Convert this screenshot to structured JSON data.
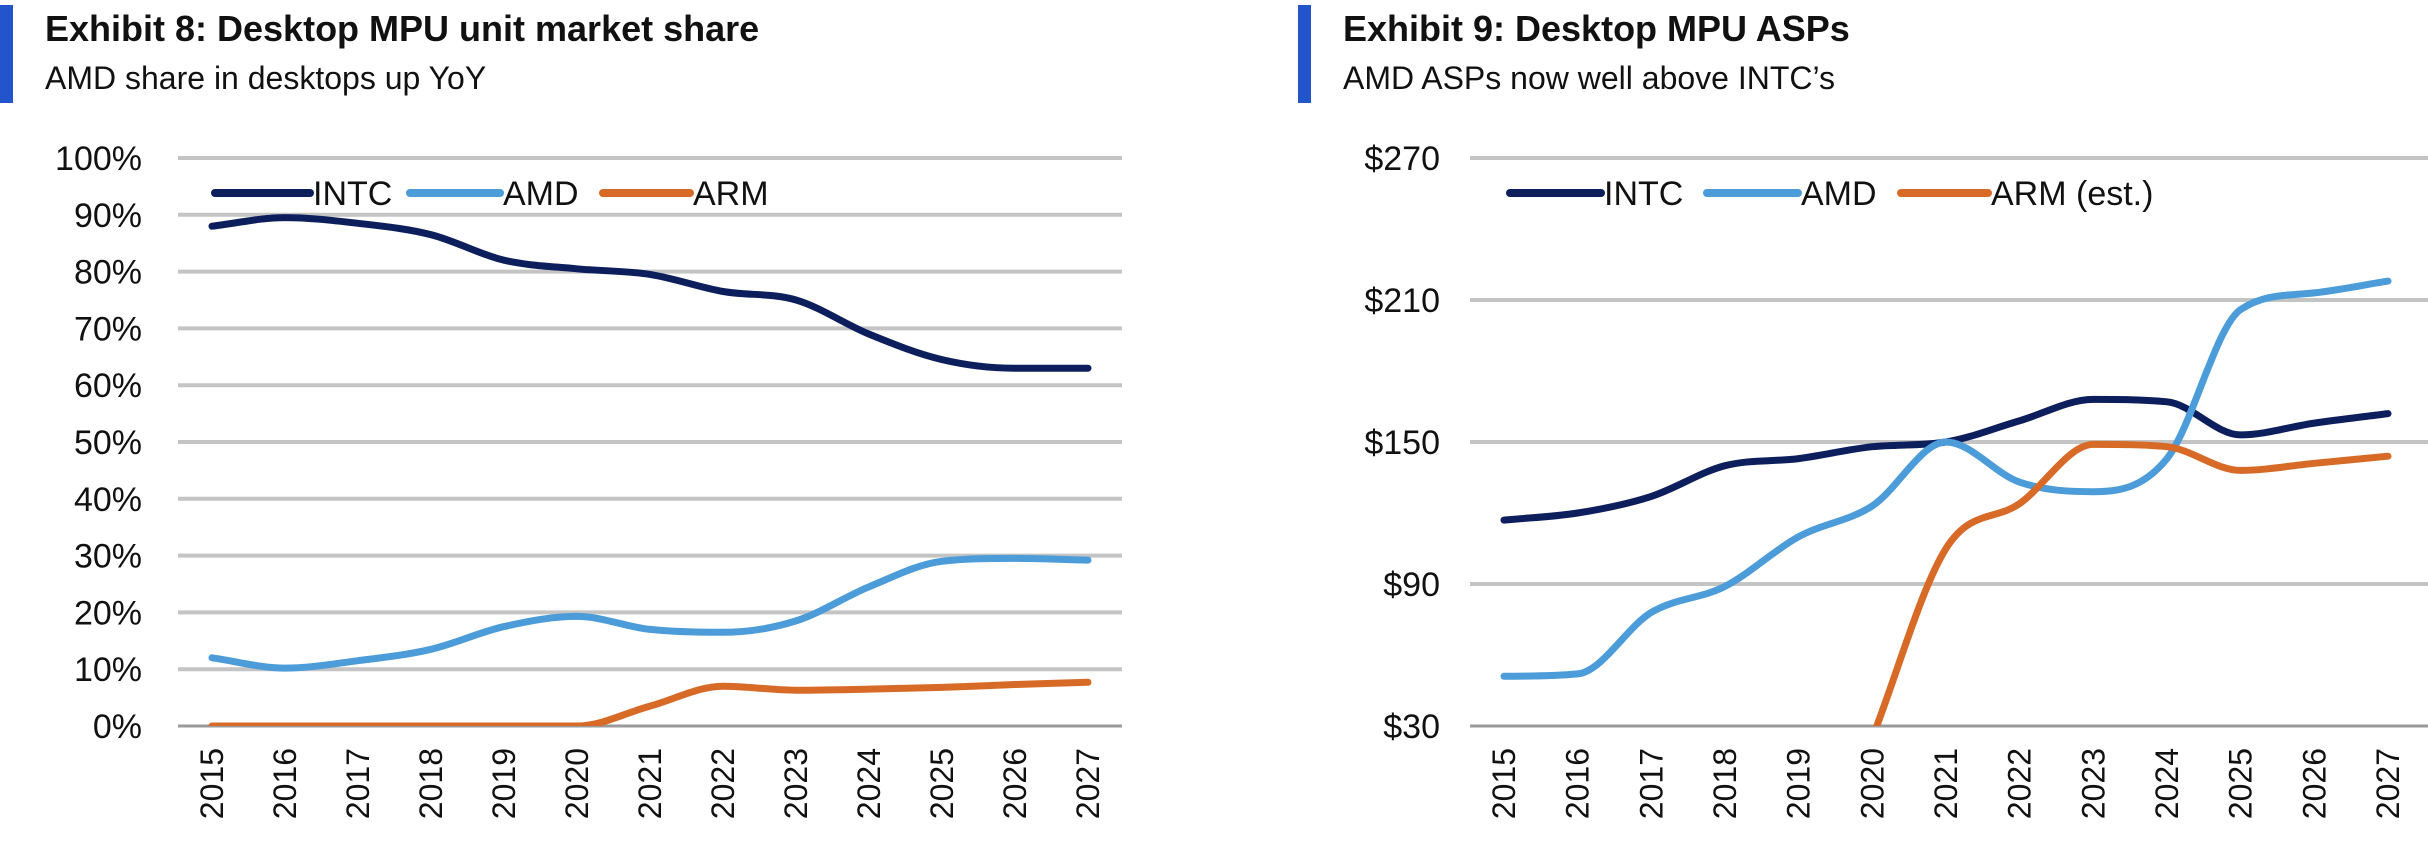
{
  "exhibits": [
    {
      "title": "Exhibit 8: Desktop MPU unit market share",
      "subtitle": "AMD share in desktops up YoY"
    },
    {
      "title": "Exhibit 9: Desktop MPU ASPs",
      "subtitle": "AMD ASPs now well above INTC’s"
    }
  ],
  "chart_data": [
    {
      "type": "line",
      "title": "Exhibit 8: Desktop MPU unit market share",
      "subtitle": "AMD share in desktops up YoY",
      "x": [
        "2015",
        "2016",
        "2017",
        "2018",
        "2019",
        "2020",
        "2021",
        "2022",
        "2023",
        "2024",
        "2025",
        "2026",
        "2027"
      ],
      "ylim": [
        0,
        100
      ],
      "yticks": [
        0,
        10,
        20,
        30,
        40,
        50,
        60,
        70,
        80,
        90,
        100
      ],
      "ytick_labels": [
        "0%",
        "10%",
        "20%",
        "30%",
        "40%",
        "50%",
        "60%",
        "70%",
        "80%",
        "90%",
        "100%"
      ],
      "grid": "horizontal",
      "legend_position": "top-left",
      "series": [
        {
          "name": "INTC",
          "color": "#0d1e5c",
          "values": [
            88,
            89.5,
            88.5,
            86.5,
            82,
            80.5,
            79.5,
            76.5,
            75,
            69,
            64.5,
            63,
            63
          ]
        },
        {
          "name": "AMD",
          "color": "#4b9cd8",
          "values": [
            12,
            10.2,
            11.5,
            13.5,
            17.5,
            19.3,
            17,
            16.5,
            18.5,
            24.5,
            29,
            29.5,
            29.2
          ]
        },
        {
          "name": "ARM",
          "color": "#d86a27",
          "values": [
            0,
            0,
            0,
            0,
            0,
            0,
            3.5,
            7,
            6.3,
            6.5,
            6.8,
            7.3,
            7.7
          ]
        }
      ]
    },
    {
      "type": "line",
      "title": "Exhibit 9: Desktop MPU ASPs",
      "subtitle": "AMD ASPs now well above INTC’s",
      "x": [
        "2015",
        "2016",
        "2017",
        "2018",
        "2019",
        "2020",
        "2021",
        "2022",
        "2023",
        "2024",
        "2025",
        "2026",
        "2027"
      ],
      "ylim": [
        30,
        270
      ],
      "yticks": [
        30,
        90,
        150,
        210,
        270
      ],
      "ytick_labels": [
        "$30",
        "$90",
        "$150",
        "$210",
        "$270"
      ],
      "grid": "horizontal",
      "legend_position": "top-left",
      "series": [
        {
          "name": "INTC",
          "color": "#0d1e5c",
          "values": [
            117,
            120,
            127,
            140,
            143,
            148,
            150,
            159,
            168,
            167,
            153,
            158,
            162
          ]
        },
        {
          "name": "AMD",
          "color": "#4b9cd8",
          "values": [
            51,
            52,
            78,
            89,
            110,
            123,
            150,
            133,
            129,
            143,
            206,
            213,
            218
          ]
        },
        {
          "name": "ARM (est.)",
          "color": "#d86a27",
          "values": [
            null,
            null,
            null,
            null,
            null,
            25,
            105,
            124,
            149,
            148,
            138,
            141,
            144
          ]
        }
      ]
    }
  ]
}
